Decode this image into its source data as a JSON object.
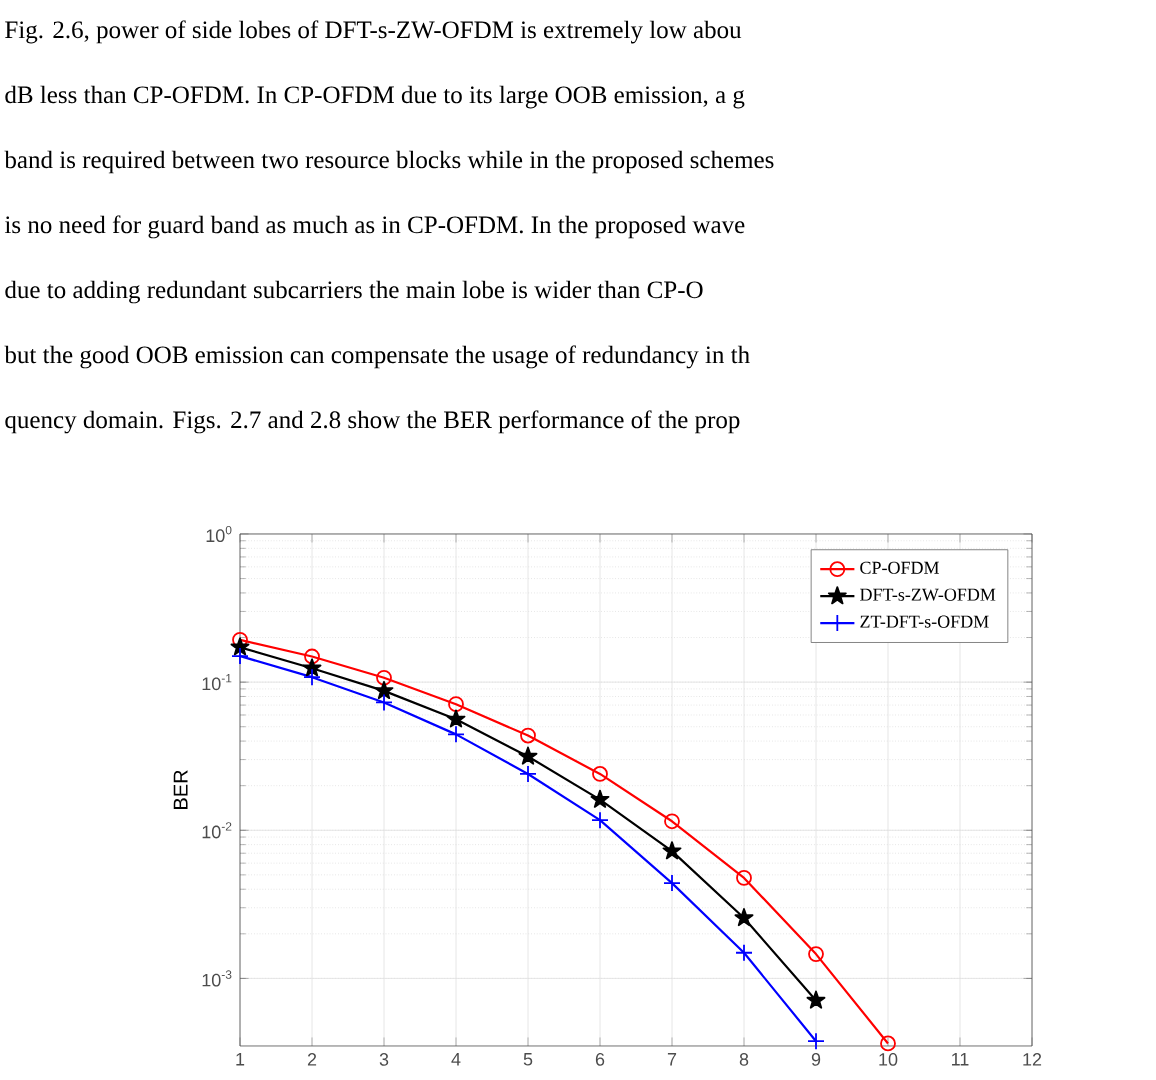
{
  "chart_data": {
    "type": "line",
    "ylabel": "BER",
    "log": "y",
    "grid": true,
    "legend": "top right",
    "line_style": "solid",
    "annotations": [
      "Fig.  2.6, power of side lobes of DFT-s-ZW-OFDM is extremely low abou",
      "dB less than CP-OFDM. In CP-OFDM due to its large OOB emission, a g",
      "band is required between two resource blocks while in the proposed schemes",
      "is no need for guard band as much as in CP-OFDM. In the proposed wave",
      "due to adding redundant subcarriers the main lobe is wider than CP-O",
      "but the good OOB emission can compensate the usage of redundancy in th",
      "quency domain.   Figs.  2.7 and 2.8 show the BER performance of the prop"
    ],
    "x": [
      1,
      2,
      3,
      4,
      5,
      6,
      7,
      8,
      9,
      10
    ],
    "xlim": [
      1,
      12
    ],
    "xticks": [
      1,
      2,
      3,
      4,
      5,
      6,
      7,
      8,
      9,
      10,
      11,
      12
    ],
    "ylim": [
      0.00035,
      1
    ],
    "yticks": [
      {
        "value": 0.001,
        "label": "10$^{-3}$"
      },
      {
        "value": 0.01,
        "label": "10$^{-2}$"
      },
      {
        "value": 0.1,
        "label": "10$^{-1}$"
      },
      {
        "value": 1,
        "label": "10$^{0}$"
      }
    ],
    "series": [
      {
        "name": "CP-OFDM",
        "color": "#ff0000",
        "marker": "circle",
        "values": [
          0.193,
          0.149,
          0.107,
          0.071,
          0.0436,
          0.024,
          0.0115,
          0.00477,
          0.00146,
          0.000364
        ]
      },
      {
        "name": "DFT-s-ZW-OFDM",
        "color": "#000000",
        "marker": "star",
        "values": [
          0.172,
          0.124,
          0.0873,
          0.0561,
          0.0315,
          0.0161,
          0.00723,
          0.00256,
          0.00071,
          null
        ]
      },
      {
        "name": "ZT-DFT-s-OFDM",
        "color": "#0000ff",
        "marker": "cross",
        "values": [
          0.15,
          0.108,
          0.0729,
          0.0444,
          0.024,
          0.0117,
          0.0044,
          0.00149,
          0.000377,
          null
        ]
      }
    ]
  }
}
